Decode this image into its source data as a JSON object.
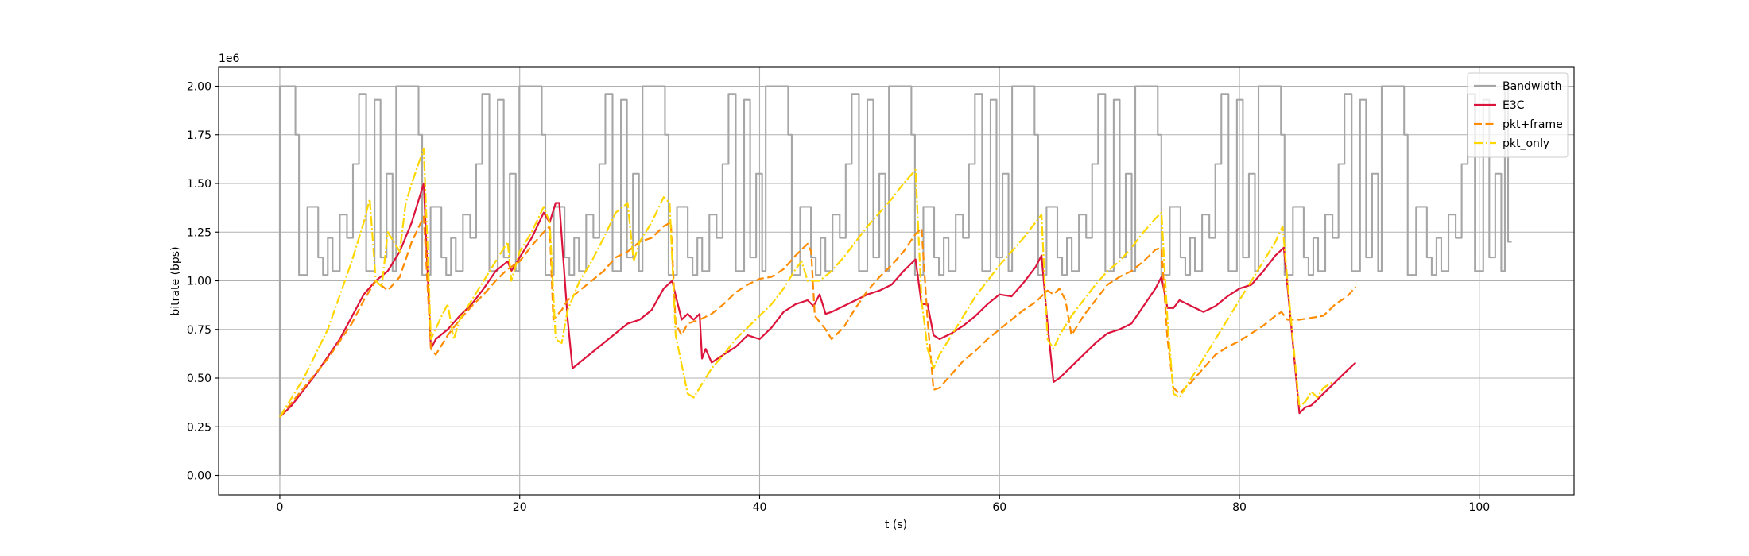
{
  "chart_data": {
    "type": "line",
    "xlabel": "t (s)",
    "ylabel": "bitrate (bps)",
    "y_offset_label": "1e6",
    "xlim": [
      -5.1,
      107.9
    ],
    "ylim": [
      -100000,
      2100000
    ],
    "xticks": [
      0,
      20,
      40,
      60,
      80,
      100
    ],
    "yticks": [
      {
        "value": 0,
        "label": "0.00"
      },
      {
        "value": 250000,
        "label": "0.25"
      },
      {
        "value": 500000,
        "label": "0.50"
      },
      {
        "value": 750000,
        "label": "0.75"
      },
      {
        "value": 1000000,
        "label": "1.00"
      },
      {
        "value": 1250000,
        "label": "1.25"
      },
      {
        "value": 1500000,
        "label": "1.50"
      },
      {
        "value": 1750000,
        "label": "1.75"
      },
      {
        "value": 2000000,
        "label": "2.00"
      }
    ],
    "grid": true,
    "legend": "upper right",
    "series": [
      {
        "name": "Bandwidth",
        "color": "#a6a6a6",
        "linestyle": "step",
        "x": [
          0,
          0,
          1.3,
          1.6,
          2.3,
          3.2,
          3.6,
          4.0,
          4.4,
          5.0,
          5.6,
          6.1,
          6.6,
          7.2,
          7.9,
          8.4,
          8.9,
          9.4,
          9.7,
          11.57,
          11.87,
          12.57,
          13.47,
          13.87,
          14.27,
          14.67,
          15.27,
          15.87,
          16.37,
          16.87,
          17.47,
          18.17,
          18.67,
          19.17,
          19.67,
          19.97,
          21.84,
          22.14,
          22.84,
          23.74,
          24.14,
          24.54,
          24.94,
          25.54,
          26.14,
          26.64,
          27.14,
          27.74,
          28.44,
          28.94,
          29.44,
          29.94,
          30.24,
          32.11,
          32.41,
          33.11,
          34.01,
          34.41,
          34.81,
          35.21,
          35.81,
          36.41,
          36.91,
          37.41,
          38.01,
          38.71,
          39.21,
          39.71,
          40.21,
          40.51,
          42.38,
          42.68,
          43.38,
          44.28,
          44.68,
          45.08,
          45.48,
          46.08,
          46.68,
          47.18,
          47.68,
          48.28,
          48.98,
          49.48,
          49.98,
          50.48,
          50.78,
          52.65,
          52.95,
          53.65,
          54.55,
          54.95,
          55.35,
          55.75,
          56.35,
          56.95,
          57.45,
          57.95,
          58.55,
          59.25,
          59.75,
          60.25,
          60.75,
          61.05,
          62.92,
          63.22,
          63.92,
          64.82,
          65.22,
          65.62,
          66.02,
          66.62,
          67.22,
          67.72,
          68.22,
          68.82,
          69.52,
          70.02,
          70.52,
          71.02,
          71.32,
          73.19,
          73.49,
          74.19,
          75.09,
          75.49,
          75.89,
          76.29,
          76.89,
          77.49,
          77.99,
          78.49,
          79.09,
          79.79,
          80.29,
          80.79,
          81.29,
          81.59,
          83.46,
          83.76,
          84.46,
          85.36,
          85.76,
          86.16,
          86.56,
          87.16,
          87.76,
          88.26,
          88.76,
          89.36,
          90.06,
          90.56,
          91.06,
          91.56,
          91.86,
          93.73,
          94.03,
          94.73,
          95.63,
          96.03,
          96.43,
          96.83,
          97.43,
          98.03,
          98.53,
          99.03,
          99.63,
          100.33,
          100.83,
          101.33,
          101.83,
          102.13,
          102.4,
          102.7
        ],
        "values": [
          0,
          2000000,
          1750000,
          1030000,
          1380000,
          1120000,
          1030000,
          1220000,
          1050000,
          1340000,
          1220000,
          1600000,
          1960000,
          1050000,
          1930000,
          1120000,
          1550000,
          1050000,
          2000000,
          1750000,
          1030000,
          1380000,
          1120000,
          1030000,
          1220000,
          1050000,
          1340000,
          1220000,
          1600000,
          1960000,
          1050000,
          1930000,
          1120000,
          1550000,
          1050000,
          2000000,
          1750000,
          1030000,
          1380000,
          1120000,
          1030000,
          1220000,
          1050000,
          1340000,
          1220000,
          1600000,
          1960000,
          1050000,
          1930000,
          1120000,
          1550000,
          1050000,
          2000000,
          1750000,
          1030000,
          1380000,
          1120000,
          1030000,
          1220000,
          1050000,
          1340000,
          1220000,
          1600000,
          1960000,
          1050000,
          1930000,
          1120000,
          1550000,
          1050000,
          2000000,
          1750000,
          1030000,
          1380000,
          1120000,
          1030000,
          1220000,
          1050000,
          1340000,
          1220000,
          1600000,
          1960000,
          1050000,
          1930000,
          1120000,
          1550000,
          1050000,
          2000000,
          1750000,
          1030000,
          1380000,
          1120000,
          1030000,
          1220000,
          1050000,
          1340000,
          1220000,
          1600000,
          1960000,
          1050000,
          1930000,
          1120000,
          1550000,
          1050000,
          2000000,
          1750000,
          1030000,
          1380000,
          1120000,
          1030000,
          1220000,
          1050000,
          1340000,
          1220000,
          1600000,
          1960000,
          1050000,
          1930000,
          1120000,
          1550000,
          1050000,
          2000000,
          1750000,
          1030000,
          1380000,
          1120000,
          1030000,
          1220000,
          1050000,
          1340000,
          1220000,
          1600000,
          1960000,
          1050000,
          1930000,
          1120000,
          1550000,
          1050000,
          2000000,
          1750000,
          1030000,
          1380000,
          1120000,
          1030000,
          1220000,
          1050000,
          1340000,
          1220000,
          1600000,
          1960000,
          1050000,
          1930000,
          1120000,
          1550000,
          1050000,
          2000000,
          1750000,
          1030000,
          1380000,
          1120000,
          1030000,
          1220000,
          1050000,
          1340000,
          1220000,
          1600000,
          1960000,
          1050000,
          1930000,
          1120000,
          1550000,
          1050000,
          2000000,
          1200000,
          1200000
        ]
      },
      {
        "name": "E3C",
        "color": "#dc143c",
        "linestyle": "solid",
        "x": [
          0,
          1,
          3,
          5,
          7,
          8,
          9,
          10,
          11,
          12,
          12.6,
          13,
          14,
          15,
          16,
          17,
          18,
          19,
          19.3,
          20,
          21,
          22,
          22.5,
          23,
          23.3,
          24,
          24.4,
          25,
          26,
          27,
          28,
          29,
          30,
          31,
          32,
          32.7,
          33.5,
          34,
          34.5,
          35,
          35.2,
          35.5,
          36,
          37,
          38,
          39,
          40,
          41,
          42,
          43,
          44,
          44.5,
          45,
          45.5,
          46,
          47,
          48,
          49,
          50,
          51,
          52,
          53,
          53.5,
          54,
          54.5,
          55,
          56,
          57,
          58,
          59,
          60,
          61,
          62,
          63,
          63.5,
          64,
          64.5,
          65,
          66,
          67,
          68,
          69,
          70,
          71,
          72,
          73,
          73.5,
          74,
          74.5,
          75,
          76,
          77,
          78,
          79,
          80,
          81,
          82,
          83,
          83.7,
          84.5,
          85,
          85.5,
          86,
          87,
          88,
          89,
          89.7
        ],
        "values": [
          300000,
          360000,
          520000,
          700000,
          930000,
          1000000,
          1050000,
          1150000,
          1300000,
          1500000,
          650000,
          700000,
          750000,
          820000,
          880000,
          960000,
          1050000,
          1100000,
          1050000,
          1120000,
          1220000,
          1350000,
          1300000,
          1400000,
          1400000,
          800000,
          550000,
          580000,
          630000,
          680000,
          730000,
          780000,
          800000,
          850000,
          960000,
          1000000,
          800000,
          830000,
          800000,
          830000,
          600000,
          650000,
          580000,
          620000,
          660000,
          720000,
          700000,
          760000,
          840000,
          880000,
          900000,
          870000,
          930000,
          830000,
          840000,
          870000,
          900000,
          930000,
          950000,
          980000,
          1050000,
          1110000,
          880000,
          880000,
          720000,
          700000,
          730000,
          770000,
          820000,
          880000,
          930000,
          920000,
          990000,
          1070000,
          1130000,
          780000,
          480000,
          500000,
          560000,
          620000,
          680000,
          730000,
          750000,
          780000,
          870000,
          960000,
          1020000,
          860000,
          860000,
          900000,
          870000,
          840000,
          870000,
          920000,
          960000,
          980000,
          1050000,
          1130000,
          1170000,
          650000,
          320000,
          350000,
          360000,
          420000,
          480000,
          540000,
          580000
        ]
      },
      {
        "name": "pkt+frame",
        "color": "#ff8c00",
        "linestyle": "dashed",
        "x": [
          0,
          2,
          4,
          6,
          7,
          8,
          9,
          10,
          11,
          12,
          12.6,
          13,
          14,
          15,
          16,
          17,
          18,
          19,
          20,
          21,
          22,
          22.5,
          22.8,
          23.5,
          24,
          25,
          26,
          27,
          28,
          29,
          30,
          31,
          32,
          32.6,
          33,
          33.5,
          34,
          35,
          36,
          37,
          38,
          39,
          40,
          41,
          42,
          43,
          44,
          44.3,
          44.6,
          45.5,
          46,
          47,
          48,
          49,
          50,
          51,
          52,
          53,
          53.5,
          54,
          54.5,
          55,
          56,
          57,
          58,
          59,
          60,
          61,
          62,
          63,
          63.5,
          64,
          64.5,
          65,
          65.5,
          66,
          66.5,
          67,
          68,
          69,
          70,
          71,
          72,
          73,
          73.5,
          74,
          74.5,
          75,
          76,
          77,
          78,
          79,
          80,
          81,
          82,
          83,
          83.5,
          84,
          85,
          86,
          87,
          88,
          89,
          89.7
        ],
        "values": [
          300000,
          450000,
          600000,
          780000,
          900000,
          1000000,
          950000,
          1020000,
          1200000,
          1330000,
          650000,
          620000,
          720000,
          800000,
          870000,
          930000,
          1000000,
          1060000,
          1100000,
          1180000,
          1250000,
          1280000,
          800000,
          850000,
          900000,
          950000,
          1000000,
          1050000,
          1120000,
          1150000,
          1200000,
          1220000,
          1280000,
          1300000,
          780000,
          720000,
          780000,
          800000,
          830000,
          880000,
          940000,
          980000,
          1010000,
          1020000,
          1060000,
          1130000,
          1190000,
          1150000,
          820000,
          750000,
          700000,
          760000,
          860000,
          950000,
          1020000,
          1080000,
          1150000,
          1240000,
          1270000,
          800000,
          440000,
          450000,
          520000,
          590000,
          640000,
          700000,
          750000,
          800000,
          850000,
          890000,
          920000,
          950000,
          930000,
          960000,
          900000,
          720000,
          770000,
          820000,
          900000,
          980000,
          1020000,
          1050000,
          1100000,
          1160000,
          1170000,
          700000,
          450000,
          420000,
          480000,
          550000,
          620000,
          660000,
          690000,
          730000,
          770000,
          820000,
          840000,
          800000,
          800000,
          810000,
          820000,
          880000,
          920000,
          970000
        ]
      },
      {
        "name": "pkt_only",
        "color": "#ffd700",
        "linestyle": "dashdot",
        "x": [
          0,
          2,
          4,
          6,
          7,
          7.5,
          8,
          8.5,
          9,
          10,
          10.5,
          11,
          12,
          12.3,
          12.6,
          13.5,
          14,
          14.5,
          15,
          16,
          17,
          18,
          19,
          19.3,
          20,
          21,
          22,
          22.5,
          23,
          23.5,
          24,
          25,
          26,
          27,
          28,
          29,
          29.5,
          30,
          31,
          32,
          32.5,
          33,
          34,
          34.5,
          35,
          36,
          37,
          38,
          39,
          40,
          41,
          42,
          43,
          43.5,
          44,
          45,
          46,
          47,
          48,
          49,
          50,
          51,
          52,
          53,
          53.5,
          54,
          54.5,
          55,
          56,
          57,
          58,
          59,
          60,
          61,
          62,
          63,
          63.5,
          64,
          64.5,
          65,
          66,
          67,
          68,
          69,
          70,
          71,
          72,
          73,
          73.5,
          74,
          74.5,
          75,
          76,
          77,
          78,
          79,
          80,
          81,
          82,
          83,
          83.6,
          84.3,
          85,
          85.5,
          86,
          86.5,
          87,
          87.8
        ],
        "values": [
          300000,
          500000,
          750000,
          1100000,
          1300000,
          1420000,
          1000000,
          970000,
          1250000,
          1150000,
          1400000,
          1500000,
          1680000,
          1200000,
          700000,
          820000,
          880000,
          700000,
          800000,
          900000,
          1000000,
          1100000,
          1200000,
          1000000,
          1150000,
          1250000,
          1380000,
          1300000,
          700000,
          680000,
          850000,
          1000000,
          1100000,
          1220000,
          1350000,
          1400000,
          1100000,
          1200000,
          1300000,
          1430000,
          1400000,
          720000,
          420000,
          400000,
          450000,
          550000,
          620000,
          700000,
          760000,
          820000,
          880000,
          960000,
          1060000,
          1100000,
          1000000,
          1000000,
          1050000,
          1120000,
          1200000,
          1280000,
          1350000,
          1420000,
          1500000,
          1570000,
          900000,
          650000,
          550000,
          620000,
          720000,
          820000,
          920000,
          1000000,
          1080000,
          1150000,
          1220000,
          1300000,
          1340000,
          700000,
          650000,
          720000,
          820000,
          900000,
          980000,
          1050000,
          1100000,
          1170000,
          1250000,
          1320000,
          1350000,
          800000,
          420000,
          400000,
          500000,
          600000,
          700000,
          800000,
          900000,
          1000000,
          1100000,
          1200000,
          1280000,
          800000,
          350000,
          380000,
          430000,
          400000,
          450000,
          480000
        ]
      }
    ]
  }
}
